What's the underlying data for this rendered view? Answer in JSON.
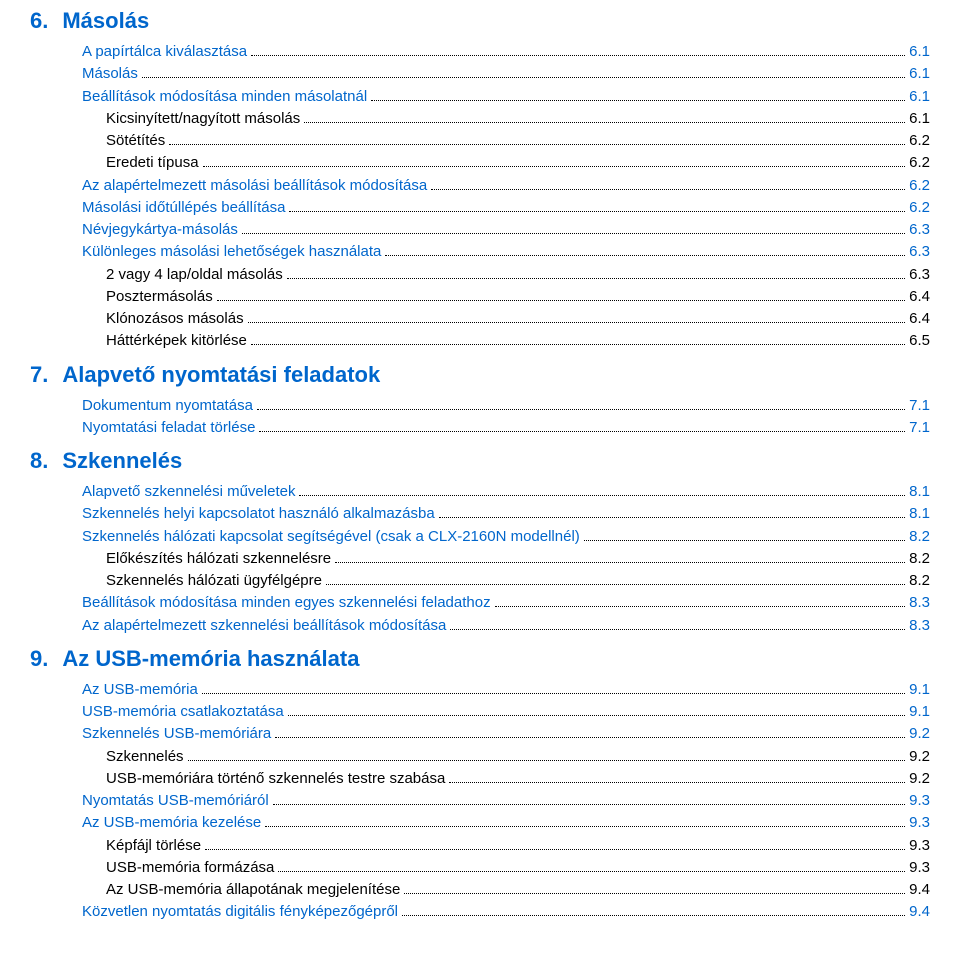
{
  "colors": {
    "heading": "#0066cc",
    "textBlue": "#0066cc",
    "textBlack": "#000000",
    "background": "#ffffff"
  },
  "fonts": {
    "heading_size_pt": 16,
    "body_size_pt": 11
  },
  "sections": [
    {
      "number": "6.",
      "title": "Másolás",
      "entries": [
        {
          "label": "A papírtálca kiválasztása",
          "page": "6.1",
          "color": "blue",
          "indent": 0
        },
        {
          "label": "Másolás",
          "page": "6.1",
          "color": "blue",
          "indent": 0
        },
        {
          "label": "Beállítások módosítása minden másolatnál",
          "page": "6.1",
          "color": "blue",
          "indent": 0
        },
        {
          "label": "Kicsinyített/nagyított másolás",
          "page": "6.1",
          "color": "black",
          "indent": 1
        },
        {
          "label": "Sötétítés",
          "page": "6.2",
          "color": "black",
          "indent": 1
        },
        {
          "label": "Eredeti típusa",
          "page": "6.2",
          "color": "black",
          "indent": 1
        },
        {
          "label": "Az alapértelmezett másolási beállítások módosítása",
          "page": "6.2",
          "color": "blue",
          "indent": 0
        },
        {
          "label": "Másolási időtúllépés beállítása",
          "page": "6.2",
          "color": "blue",
          "indent": 0
        },
        {
          "label": "Névjegykártya-másolás",
          "page": "6.3",
          "color": "blue",
          "indent": 0
        },
        {
          "label": "Különleges másolási lehetőségek használata",
          "page": "6.3",
          "color": "blue",
          "indent": 0
        },
        {
          "label": "2 vagy 4 lap/oldal másolás",
          "page": "6.3",
          "color": "black",
          "indent": 1
        },
        {
          "label": "Posztermásolás",
          "page": "6.4",
          "color": "black",
          "indent": 1
        },
        {
          "label": "Klónozásos másolás",
          "page": "6.4",
          "color": "black",
          "indent": 1
        },
        {
          "label": "Háttérképek kitörlése",
          "page": "6.5",
          "color": "black",
          "indent": 1
        }
      ]
    },
    {
      "number": "7.",
      "title": "Alapvető nyomtatási feladatok",
      "entries": [
        {
          "label": "Dokumentum nyomtatása",
          "page": "7.1",
          "color": "blue",
          "indent": 0
        },
        {
          "label": "Nyomtatási feladat törlése",
          "page": "7.1",
          "color": "blue",
          "indent": 0
        }
      ]
    },
    {
      "number": "8.",
      "title": "Szkennelés",
      "entries": [
        {
          "label": "Alapvető szkennelési műveletek",
          "page": "8.1",
          "color": "blue",
          "indent": 0
        },
        {
          "label": "Szkennelés helyi kapcsolatot használó alkalmazásba",
          "page": "8.1",
          "color": "blue",
          "indent": 0
        },
        {
          "label": "Szkennelés hálózati kapcsolat segítségével (csak a CLX-2160N modellnél)",
          "page": "8.2",
          "color": "blue",
          "indent": 0
        },
        {
          "label": "Előkészítés hálózati szkennelésre",
          "page": "8.2",
          "color": "black",
          "indent": 1
        },
        {
          "label": "Szkennelés  hálózati ügyfélgépre",
          "page": "8.2",
          "color": "black",
          "indent": 1
        },
        {
          "label": "Beállítások módosítása minden egyes szkennelési feladathoz",
          "page": "8.3",
          "color": "blue",
          "indent": 0
        },
        {
          "label": "Az alapértelmezett szkennelési beállítások módosítása",
          "page": "8.3",
          "color": "blue",
          "indent": 0
        }
      ]
    },
    {
      "number": "9.",
      "title": "Az USB-memória használata",
      "entries": [
        {
          "label": "Az USB-memória",
          "page": "9.1",
          "color": "blue",
          "indent": 0
        },
        {
          "label": "USB-memória csatlakoztatása",
          "page": "9.1",
          "color": "blue",
          "indent": 0
        },
        {
          "label": "Szkennelés USB-memóriára",
          "page": "9.2",
          "color": "blue",
          "indent": 0
        },
        {
          "label": "Szkennelés",
          "page": "9.2",
          "color": "black",
          "indent": 1
        },
        {
          "label": "USB-memóriára történő szkennelés testre szabása",
          "page": "9.2",
          "color": "black",
          "indent": 1
        },
        {
          "label": "Nyomtatás USB-memóriáról",
          "page": "9.3",
          "color": "blue",
          "indent": 0
        },
        {
          "label": "Az USB-memória kezelése",
          "page": "9.3",
          "color": "blue",
          "indent": 0
        },
        {
          "label": "Képfájl törlése",
          "page": "9.3",
          "color": "black",
          "indent": 1
        },
        {
          "label": "USB-memória formázása",
          "page": "9.3",
          "color": "black",
          "indent": 1
        },
        {
          "label": "Az USB-memória állapotának megjelenítése",
          "page": "9.4",
          "color": "black",
          "indent": 1
        },
        {
          "label": "Közvetlen nyomtatás digitális fényképezőgépről",
          "page": "9.4",
          "color": "blue",
          "indent": 0
        }
      ]
    }
  ]
}
